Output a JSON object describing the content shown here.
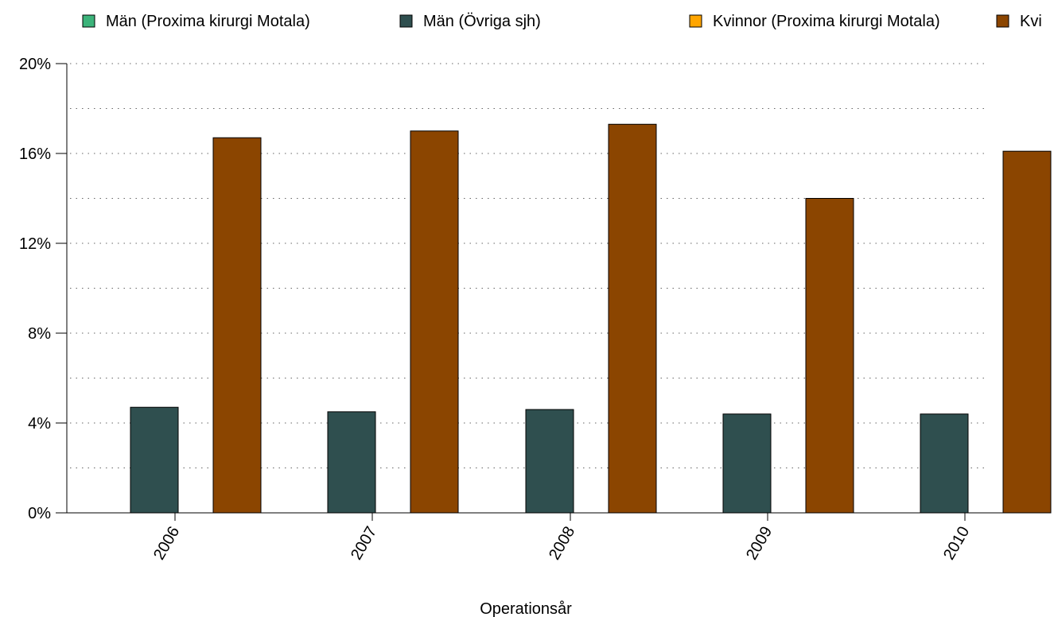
{
  "chart_data": {
    "type": "bar",
    "categories": [
      "2006",
      "2007",
      "2008",
      "2009",
      "2010"
    ],
    "series": [
      {
        "name": "Män (Proxima kirurgi Motala)",
        "color": "#3cb37a",
        "values": [
          0,
          0,
          0,
          0,
          0
        ]
      },
      {
        "name": "Män (Övriga sjh)",
        "color": "#2f4f4f",
        "values": [
          4.7,
          4.5,
          4.6,
          4.4,
          4.4
        ]
      },
      {
        "name": "Kvinnor (Proxima kirurgi Motala)",
        "color": "#ffa500",
        "values": [
          0,
          0,
          0,
          0,
          0
        ]
      },
      {
        "name": "Kvi",
        "color": "#8b4500",
        "values": [
          16.7,
          17.0,
          17.3,
          14.0,
          16.1
        ]
      }
    ],
    "xlabel": "Operationsår",
    "ylabel": "",
    "ylim": [
      0,
      20
    ],
    "yticks": [
      "0%",
      "4%",
      "8%",
      "12%",
      "16%",
      "20%"
    ],
    "grid": true,
    "legend": "top"
  }
}
